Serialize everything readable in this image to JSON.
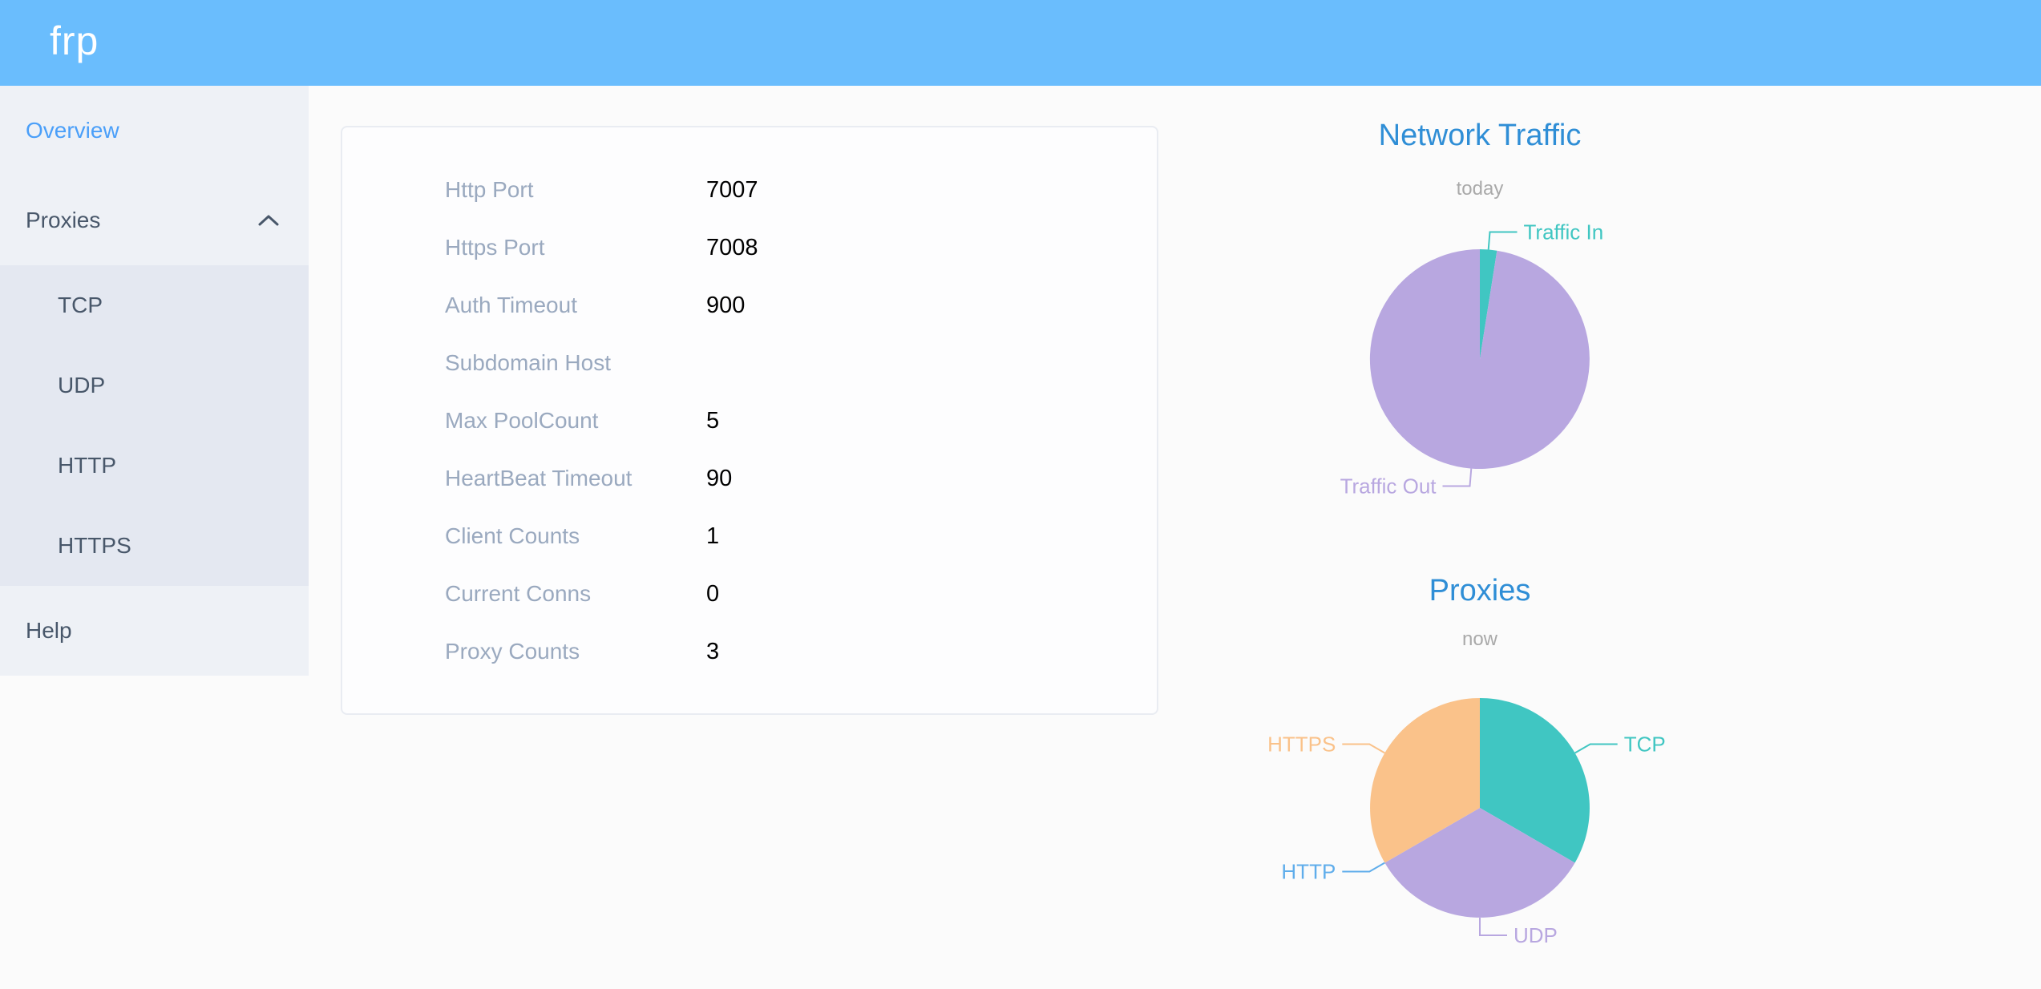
{
  "logo": "frp",
  "colors": {
    "header_bg": "#6abdfd",
    "sidebar_bg": "#eef1f6",
    "submenu_bg": "#e4e8f1",
    "menu_text": "#48576a",
    "menu_active": "#4a9ff9",
    "chart_title_blue": "#2f8ed6",
    "chart_subtitle_gray": "#a9a9a9",
    "card_label_gray": "#9aa9bf",
    "card_value_black": "#000000",
    "teal": "#40c6c2",
    "purple": "#b8a7e0",
    "orange": "#fac28a",
    "blue": "#5fadeb"
  },
  "sidebar": {
    "items": [
      {
        "id": "overview",
        "label": "Overview",
        "type": "item",
        "active": true
      },
      {
        "id": "proxies",
        "label": "Proxies",
        "type": "submenu-header",
        "expanded": true
      },
      {
        "id": "tcp",
        "label": "TCP",
        "type": "subitem"
      },
      {
        "id": "udp",
        "label": "UDP",
        "type": "subitem"
      },
      {
        "id": "http",
        "label": "HTTP",
        "type": "subitem"
      },
      {
        "id": "https",
        "label": "HTTPS",
        "type": "subitem"
      },
      {
        "id": "help",
        "label": "Help",
        "type": "item",
        "active": false
      }
    ]
  },
  "card": {
    "rows": [
      {
        "label": "Http Port",
        "value": "7007"
      },
      {
        "label": "Https Port",
        "value": "7008"
      },
      {
        "label": "Auth Timeout",
        "value": "900"
      },
      {
        "label": "Subdomain Host",
        "value": ""
      },
      {
        "label": "Max PoolCount",
        "value": "5"
      },
      {
        "label": "HeartBeat Timeout",
        "value": "90"
      },
      {
        "label": "Client Counts",
        "value": "1"
      },
      {
        "label": "Current Conns",
        "value": "0"
      },
      {
        "label": "Proxy Counts",
        "value": "3"
      }
    ]
  },
  "chart_data": [
    {
      "type": "pie",
      "title": "Network Traffic",
      "subtitle": "today",
      "legend_position": "none",
      "label_style": "outside with leader lines",
      "start_angle_deg": 0,
      "clockwise": true,
      "unit": "% share (estimated from slice angles)",
      "series": [
        {
          "name": "Traffic In",
          "value": 2.5,
          "color": "#40c6c2"
        },
        {
          "name": "Traffic Out",
          "value": 97.5,
          "color": "#b8a7e0"
        }
      ]
    },
    {
      "type": "pie",
      "title": "Proxies",
      "subtitle": "now",
      "legend_position": "none",
      "label_style": "outside with leader lines",
      "start_angle_deg": 0,
      "clockwise": true,
      "unit": "proxy count",
      "series": [
        {
          "name": "TCP",
          "value": 1,
          "color": "#40c6c2"
        },
        {
          "name": "UDP",
          "value": 1,
          "color": "#b8a7e0"
        },
        {
          "name": "HTTP",
          "value": 0,
          "color": "#5fadeb"
        },
        {
          "name": "HTTPS",
          "value": 1,
          "color": "#fac28a"
        }
      ]
    }
  ]
}
